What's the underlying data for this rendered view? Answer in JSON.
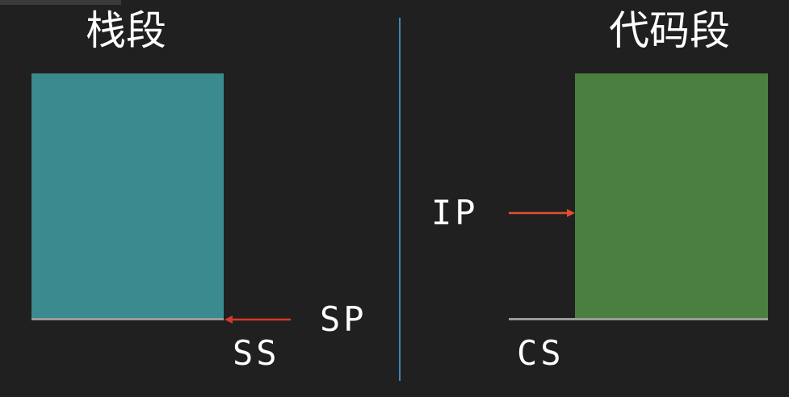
{
  "stack": {
    "title": "栈段",
    "segment_register": "SS",
    "pointer_register": "SP",
    "color": "#3a8a8f"
  },
  "code": {
    "title": "代码段",
    "segment_register": "CS",
    "pointer_register": "IP",
    "color": "#4a7f40"
  },
  "colors": {
    "background": "#202020",
    "divider": "#3f87b8",
    "arrow": "#d43a2a",
    "baseline": "#9a9a9a"
  }
}
